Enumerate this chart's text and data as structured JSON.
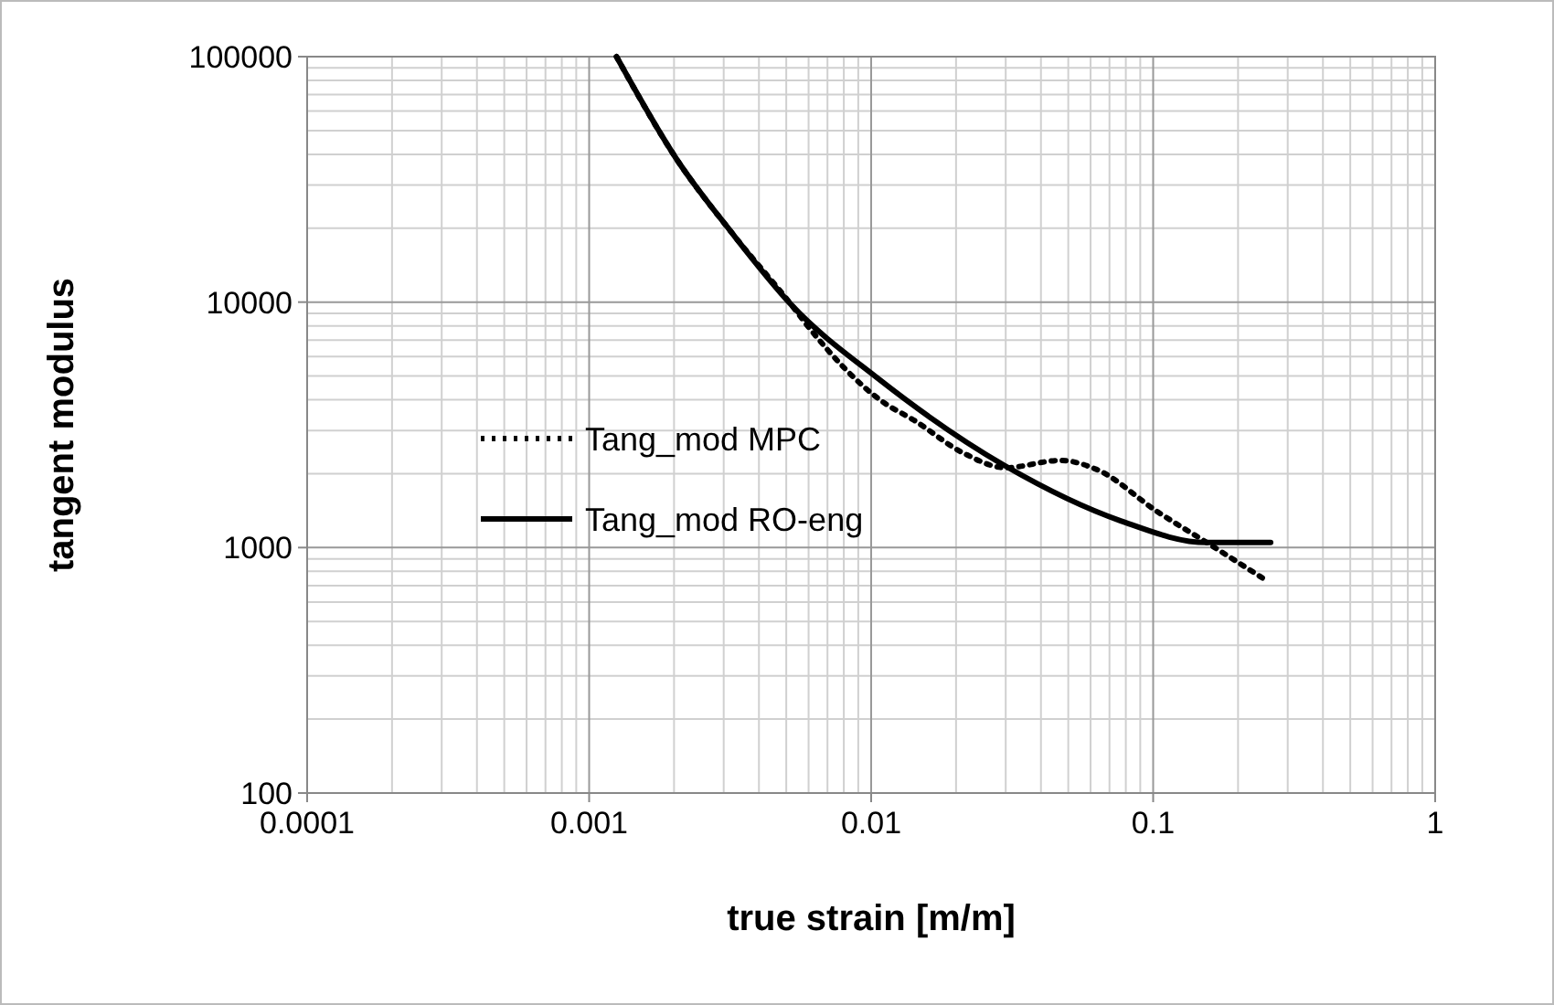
{
  "chart_data": {
    "type": "line",
    "xlabel": "true strain [m/m]",
    "ylabel": "tangent modulus",
    "log": "xy",
    "grid": true,
    "legend": "left",
    "xlim": [
      0.0001,
      1
    ],
    "xticks": [
      0.0001,
      0.001,
      0.01,
      0.1,
      1
    ],
    "ylim": [
      100,
      100000
    ],
    "yticks": [
      100,
      1000,
      10000,
      100000
    ],
    "series": [
      {
        "name": "Tang_mod MPC",
        "color": "#000000",
        "line_style": "dotted",
        "x": [
          0.00125,
          0.00204,
          0.00319,
          0.00522,
          0.00607,
          0.011,
          0.0142,
          0.0212,
          0.0299,
          0.0469,
          0.0631,
          0.1035,
          0.155,
          0.254
        ],
        "values": [
          100000,
          38300,
          19300,
          9730,
          7780,
          3920,
          3300,
          2430,
          2115,
          2265,
          2080,
          1400,
          1048,
          730
        ]
      },
      {
        "name": "Tang_mod RO-eng",
        "color": "#000000",
        "line_style": "solid",
        "x": [
          0.00125,
          0.00204,
          0.00319,
          0.00522,
          0.01054,
          0.0299,
          0.0767,
          0.155,
          0.261
        ],
        "values": [
          100000,
          38300,
          19300,
          9730,
          4900,
          2150,
          1285,
          1048,
          1048
        ]
      }
    ]
  }
}
